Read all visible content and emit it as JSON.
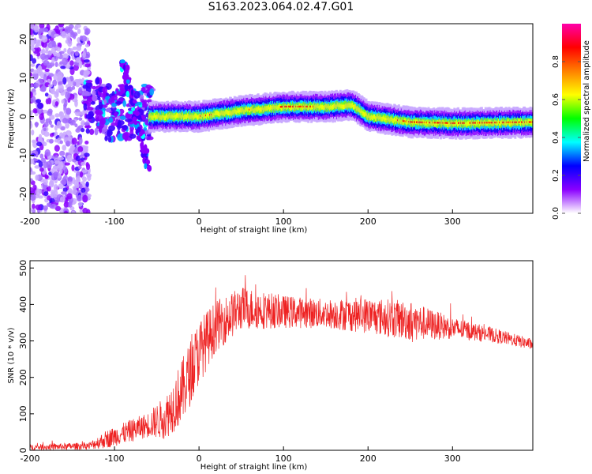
{
  "title": "S163.2023.064.02.47.G01",
  "chart_data": [
    {
      "type": "heatmap",
      "xlabel": "Height of straight line (km)",
      "ylabel": "Frequency (Hz)",
      "xlim": [
        -200,
        395
      ],
      "ylim": [
        -25,
        24
      ],
      "xticks": [
        -200,
        -100,
        0,
        100,
        200,
        300
      ],
      "yticks": [
        20,
        10,
        0,
        -10,
        -20
      ],
      "colorbar": {
        "label": "Normalized spectral amplitude",
        "range": [
          0,
          1
        ],
        "ticks": [
          "0.0",
          "0.2",
          "0.4",
          "0.6",
          "0.8"
        ],
        "colors": [
          "#ffffff",
          "#8a00ff",
          "#0000ff",
          "#00ffff",
          "#00ff00",
          "#ffff00",
          "#ff8000",
          "#ff0000",
          "#ff00aa"
        ]
      },
      "frequency_track": [
        {
          "x": -200,
          "y": 0
        },
        {
          "x": -120,
          "y": 4
        },
        {
          "x": -90,
          "y": 0
        },
        {
          "x": -60,
          "y": 0
        },
        {
          "x": 0,
          "y": 0
        },
        {
          "x": 50,
          "y": 1.5
        },
        {
          "x": 100,
          "y": 2.5
        },
        {
          "x": 150,
          "y": 2.5
        },
        {
          "x": 180,
          "y": 3
        },
        {
          "x": 200,
          "y": 0
        },
        {
          "x": 250,
          "y": -1.5
        },
        {
          "x": 300,
          "y": -1.8
        },
        {
          "x": 395,
          "y": -1.5
        }
      ],
      "diagonal_streak": {
        "x_start": -90,
        "y_start": 14,
        "x_end": -60,
        "y_end": -13
      }
    },
    {
      "type": "line",
      "xlabel": "Height of straight line (km)",
      "ylabel": "SNR (10 * v/v)",
      "xlim": [
        -200,
        395
      ],
      "ylim": [
        0,
        520
      ],
      "xticks": [
        -200,
        -100,
        0,
        100,
        200,
        300
      ],
      "yticks": [
        0,
        100,
        200,
        300,
        400,
        500
      ],
      "color": "#ee2222",
      "envelope": [
        {
          "x": -200,
          "mean": 8,
          "spread": 8
        },
        {
          "x": -130,
          "mean": 12,
          "spread": 10
        },
        {
          "x": -110,
          "mean": 30,
          "spread": 25
        },
        {
          "x": -60,
          "mean": 70,
          "spread": 35
        },
        {
          "x": -40,
          "mean": 90,
          "spread": 60
        },
        {
          "x": -20,
          "mean": 160,
          "spread": 90
        },
        {
          "x": 0,
          "mean": 270,
          "spread": 90
        },
        {
          "x": 20,
          "mean": 340,
          "spread": 70
        },
        {
          "x": 50,
          "mean": 390,
          "spread": 60
        },
        {
          "x": 100,
          "mean": 380,
          "spread": 45
        },
        {
          "x": 150,
          "mean": 375,
          "spread": 40
        },
        {
          "x": 200,
          "mean": 370,
          "spread": 50
        },
        {
          "x": 250,
          "mean": 355,
          "spread": 55
        },
        {
          "x": 300,
          "mean": 335,
          "spread": 30
        },
        {
          "x": 350,
          "mean": 315,
          "spread": 20
        },
        {
          "x": 395,
          "mean": 290,
          "spread": 15
        }
      ]
    }
  ]
}
